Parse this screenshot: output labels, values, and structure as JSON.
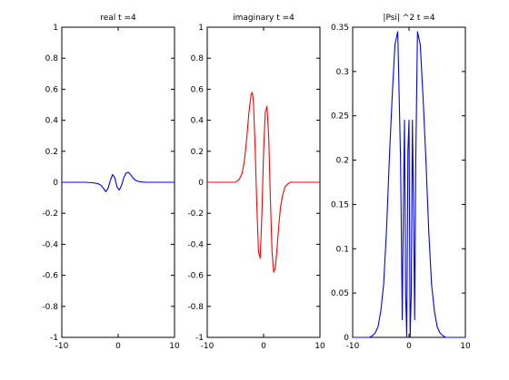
{
  "chart_data": [
    {
      "type": "line",
      "title": "real t =4",
      "xlabel": "",
      "ylabel": "",
      "xlim": [
        -10,
        10
      ],
      "ylim": [
        -1,
        1
      ],
      "xticks": [
        -10,
        0,
        10
      ],
      "yticks": [
        -1,
        -0.8,
        -0.6,
        -0.4,
        -0.2,
        0,
        0.2,
        0.4,
        0.6,
        0.8,
        1
      ],
      "ytick_labels": [
        "-1",
        "-0.8",
        "-0.6",
        "-0.4",
        "-0.2",
        "0",
        "0.2",
        "0.4",
        "0.6",
        "0.8",
        "1"
      ],
      "grid": false,
      "color": "#0000ff",
      "series": [
        {
          "x": [
            -10,
            -6,
            -4.5,
            -3.5,
            -3,
            -2.6,
            -2.2,
            -1.8,
            -1.4,
            -1.0,
            -0.6,
            -0.2,
            0.2,
            0.6,
            1.0,
            1.4,
            1.8,
            2.2,
            2.6,
            3.0,
            3.4,
            3.8,
            4.2,
            4.6,
            5.0,
            5.5,
            6.5,
            10
          ],
          "y": [
            0,
            0,
            -0.003,
            -0.01,
            -0.02,
            -0.04,
            -0.06,
            -0.04,
            0.01,
            0.05,
            0.03,
            -0.03,
            -0.05,
            -0.02,
            0.03,
            0.06,
            0.065,
            0.05,
            0.03,
            0.015,
            0.008,
            0.004,
            0.002,
            0.001,
            0,
            0,
            0,
            0
          ]
        }
      ]
    },
    {
      "type": "line",
      "title": "imaginary t =4",
      "xlabel": "",
      "ylabel": "",
      "xlim": [
        -10,
        10
      ],
      "ylim": [
        -1,
        1
      ],
      "xticks": [
        -10,
        0,
        10
      ],
      "yticks": [
        -1,
        -0.8,
        -0.6,
        -0.4,
        -0.2,
        0,
        0.2,
        0.4,
        0.6,
        0.8,
        1
      ],
      "ytick_labels": [
        "-1",
        "-0.8",
        "-0.6",
        "-0.4",
        "-0.2",
        "0",
        "0.2",
        "0.4",
        "0.6",
        "0.8",
        "1"
      ],
      "grid": false,
      "color": "#ff0000",
      "series": [
        {
          "x": [
            -10,
            -5,
            -4.3,
            -3.8,
            -3.4,
            -3.0,
            -2.6,
            -2.2,
            -2.0,
            -1.8,
            -1.5,
            -1.2,
            -0.9,
            -0.6,
            -0.3,
            0,
            0.3,
            0.6,
            0.9,
            1.2,
            1.5,
            1.8,
            2.1,
            2.4,
            2.7,
            3.0,
            3.4,
            3.8,
            4.3,
            4.8,
            5.5,
            10
          ],
          "y": [
            0,
            0,
            0.02,
            0.06,
            0.14,
            0.28,
            0.45,
            0.57,
            0.58,
            0.52,
            0.22,
            -0.15,
            -0.45,
            -0.49,
            -0.2,
            0.2,
            0.45,
            0.49,
            0.3,
            -0.1,
            -0.45,
            -0.58,
            -0.55,
            -0.42,
            -0.28,
            -0.16,
            -0.08,
            -0.03,
            -0.01,
            0,
            0,
            0
          ]
        }
      ]
    },
    {
      "type": "line",
      "title": "|Psi| ^2 t =4",
      "xlabel": "",
      "ylabel": "",
      "xlim": [
        -10,
        10
      ],
      "ylim": [
        0,
        0.35
      ],
      "xticks": [
        -10,
        0,
        10
      ],
      "yticks": [
        0,
        0.05,
        0.1,
        0.15,
        0.2,
        0.25,
        0.3,
        0.35
      ],
      "ytick_labels": [
        "0",
        "0.05",
        "0.1",
        "0.15",
        "0.2",
        "0.25",
        "0.3",
        "0.35"
      ],
      "grid": false,
      "color": "#0000ff",
      "series": [
        {
          "x": [
            -10,
            -7,
            -6.5,
            -6,
            -5.5,
            -5,
            -4.5,
            -4,
            -3.5,
            -3,
            -2.5,
            -2,
            -1.5,
            -1.2,
            -1.0,
            -0.8,
            -0.6,
            -0.4,
            -0.2,
            0,
            0.2,
            0.4,
            0.6,
            0.8,
            1.0,
            1.2,
            1.5,
            2,
            2.5,
            3,
            3.5,
            4,
            4.5,
            5,
            5.5,
            6,
            6.5,
            7,
            10
          ],
          "y": [
            0,
            0,
            0.002,
            0.005,
            0.012,
            0.03,
            0.06,
            0.12,
            0.2,
            0.27,
            0.33,
            0.345,
            0.2,
            0.02,
            0.15,
            0.245,
            0.05,
            0.0,
            0.21,
            0.245,
            0.0,
            0.05,
            0.245,
            0.15,
            0.02,
            0.2,
            0.345,
            0.33,
            0.27,
            0.2,
            0.12,
            0.06,
            0.03,
            0.012,
            0.005,
            0.002,
            0,
            0,
            0
          ]
        }
      ]
    }
  ]
}
